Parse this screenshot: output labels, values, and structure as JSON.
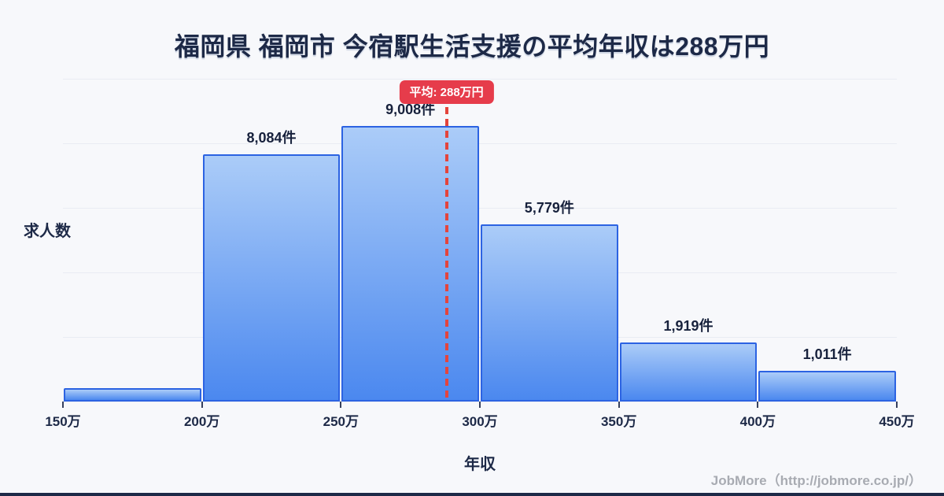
{
  "title": "福岡県 福岡市 今宿駅生活支援の平均年収は288万円",
  "footer": {
    "credit": "JobMore（http://jobmore.co.jp/）"
  },
  "colors": {
    "background": "#f7f8fb",
    "title_text": "#1d2947",
    "bar_border": "#2c63e2",
    "bar_gradient_top": "#abccf8",
    "bar_gradient_bottom": "#4b88ef",
    "gridline": "#e9ecf3",
    "mean_badge_red": "#e63c4b",
    "mean_line_red": "#e4443c",
    "footer_gray": "#a8abb2",
    "bottom_bar_navy": "#1d2947"
  },
  "chart_data": {
    "type": "bar",
    "subtype": "histogram",
    "title": "福岡県 福岡市 今宿駅生活支援の平均年収は288万円",
    "xlabel": "年収",
    "ylabel": "求人数",
    "x_ticks": [
      "150万",
      "200万",
      "250万",
      "300万",
      "350万",
      "400万",
      "450万"
    ],
    "x_range": [
      150,
      450
    ],
    "ylim": [
      0,
      10550
    ],
    "grid": true,
    "bins": [
      {
        "range": "150万-200万",
        "value": 440,
        "label": ""
      },
      {
        "range": "200万-250万",
        "value": 8084,
        "label": "8,084件"
      },
      {
        "range": "250万-300万",
        "value": 9008,
        "label": "9,008件"
      },
      {
        "range": "300万-350万",
        "value": 5779,
        "label": "5,779件"
      },
      {
        "range": "350万-400万",
        "value": 1919,
        "label": "1,919件"
      },
      {
        "range": "400万-450万",
        "value": 1011,
        "label": "1,011件"
      }
    ],
    "mean": {
      "value": 288,
      "label": "平均: 288万円"
    },
    "notes": "first bin (150万-200万) has no printed count label; value estimated from bar height"
  }
}
